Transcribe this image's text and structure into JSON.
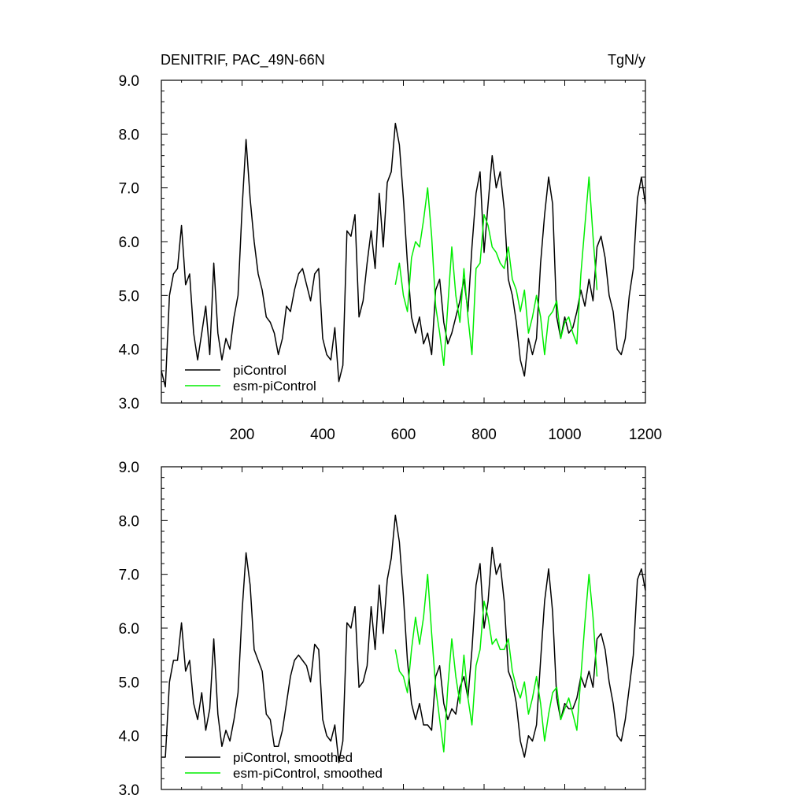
{
  "header": {
    "title": "DENITRIF, PAC_49N-66N",
    "units": "TgN/y"
  },
  "colors": {
    "piControl": "#000000",
    "esm_piControl": "#00ee00",
    "axes": "#000000",
    "background": "#ffffff"
  },
  "chart_data": [
    {
      "type": "line",
      "panel": "top",
      "title": "DENITRIF, PAC_49N-66N",
      "units_label": "TgN/y",
      "xlim": [
        0,
        1200
      ],
      "ylim": [
        3.0,
        9.0
      ],
      "xticks": [
        200,
        400,
        600,
        800,
        1000,
        1200
      ],
      "xtick_labels": [
        "200",
        "400",
        "600",
        "800",
        "1000",
        "1200"
      ],
      "yticks": [
        3.0,
        4.0,
        5.0,
        6.0,
        7.0,
        8.0,
        9.0
      ],
      "ytick_labels": [
        "3.0",
        "4.0",
        "5.0",
        "6.0",
        "7.0",
        "8.0",
        "9.0"
      ],
      "legend_position": "bottom-left",
      "series": [
        {
          "name": "piControl",
          "color": "#000000",
          "x": [
            0,
            10,
            20,
            30,
            40,
            50,
            60,
            70,
            80,
            90,
            100,
            110,
            120,
            130,
            140,
            150,
            160,
            170,
            180,
            190,
            200,
            210,
            220,
            230,
            240,
            250,
            260,
            270,
            280,
            290,
            300,
            310,
            320,
            330,
            340,
            350,
            360,
            370,
            380,
            390,
            400,
            410,
            420,
            430,
            440,
            450,
            460,
            470,
            480,
            490,
            500,
            510,
            520,
            530,
            540,
            550,
            560,
            570,
            580,
            590,
            600,
            610,
            620,
            630,
            640,
            650,
            660,
            670,
            680,
            690,
            700,
            710,
            720,
            730,
            740,
            750,
            760,
            770,
            780,
            790,
            800,
            810,
            820,
            830,
            840,
            850,
            860,
            870,
            880,
            890,
            900,
            910,
            920,
            930,
            940,
            950,
            960,
            970,
            980,
            990,
            1000,
            1010,
            1020,
            1030,
            1040,
            1050,
            1060,
            1070,
            1080,
            1090,
            1100,
            1110,
            1120,
            1130,
            1140,
            1150,
            1160,
            1170,
            1180,
            1190,
            1200
          ],
          "values": [
            3.6,
            3.3,
            5.0,
            5.4,
            5.5,
            6.3,
            5.2,
            5.4,
            4.3,
            3.8,
            4.3,
            4.8,
            3.9,
            5.6,
            4.3,
            3.8,
            4.2,
            4.0,
            4.6,
            5.0,
            6.6,
            7.9,
            6.8,
            6.0,
            5.4,
            5.1,
            4.6,
            4.5,
            4.3,
            3.9,
            4.2,
            4.8,
            4.7,
            5.1,
            5.4,
            5.5,
            5.2,
            4.9,
            5.4,
            5.5,
            4.2,
            3.9,
            3.8,
            4.4,
            3.4,
            3.7,
            6.2,
            6.1,
            6.5,
            4.6,
            4.9,
            5.6,
            6.2,
            5.5,
            6.9,
            5.9,
            7.1,
            7.3,
            8.2,
            7.8,
            6.8,
            5.6,
            4.6,
            4.3,
            4.6,
            4.1,
            4.3,
            3.9,
            5.1,
            5.3,
            4.5,
            4.1,
            4.3,
            4.6,
            4.9,
            5.3,
            4.7,
            5.9,
            6.9,
            7.3,
            5.8,
            6.7,
            7.6,
            7.0,
            7.3,
            6.6,
            5.3,
            5.0,
            4.5,
            3.8,
            3.5,
            4.2,
            3.9,
            4.2,
            5.6,
            6.5,
            7.2,
            6.7,
            4.6,
            4.2,
            4.6,
            4.3,
            4.4,
            4.7,
            5.1,
            4.8,
            5.3,
            4.9,
            5.9,
            6.1,
            5.7,
            5.0,
            4.7,
            4.0,
            3.9,
            4.2,
            5.0,
            5.5,
            6.8,
            7.2,
            6.7
          ]
        },
        {
          "name": "esm-piControl",
          "color": "#00ee00",
          "x": [
            580,
            590,
            600,
            610,
            620,
            630,
            640,
            650,
            660,
            670,
            680,
            690,
            700,
            710,
            720,
            730,
            740,
            750,
            760,
            770,
            780,
            790,
            800,
            810,
            820,
            830,
            840,
            850,
            860,
            870,
            880,
            890,
            900,
            910,
            920,
            930,
            940,
            950,
            960,
            970,
            980,
            990,
            1000,
            1010,
            1020,
            1030,
            1040,
            1050,
            1060,
            1070,
            1080
          ],
          "values": [
            5.2,
            5.6,
            5.0,
            4.7,
            5.7,
            6.0,
            5.9,
            6.4,
            7.0,
            6.1,
            4.8,
            4.3,
            3.7,
            4.8,
            5.9,
            5.0,
            4.5,
            5.5,
            4.6,
            3.9,
            5.5,
            5.6,
            6.5,
            6.3,
            5.9,
            5.8,
            5.6,
            5.5,
            5.9,
            5.3,
            5.1,
            4.7,
            5.1,
            4.3,
            4.6,
            5.0,
            4.6,
            3.9,
            4.6,
            4.7,
            4.9,
            4.2,
            4.5,
            4.6,
            4.3,
            4.1,
            5.4,
            6.3,
            7.2,
            6.1,
            5.1
          ]
        }
      ]
    },
    {
      "type": "line",
      "panel": "bottom",
      "xlim": [
        0,
        1200
      ],
      "ylim": [
        3.0,
        9.0
      ],
      "xticks": [
        200,
        400,
        600,
        800,
        1000,
        1200
      ],
      "yticks": [
        3.0,
        4.0,
        5.0,
        6.0,
        7.0,
        8.0,
        9.0
      ],
      "ytick_labels": [
        "3.0",
        "4.0",
        "5.0",
        "6.0",
        "7.0",
        "8.0",
        "9.0"
      ],
      "legend_position": "bottom-left",
      "series": [
        {
          "name": "piControl, smoothed",
          "color": "#000000",
          "x": [
            0,
            10,
            20,
            30,
            40,
            50,
            60,
            70,
            80,
            90,
            100,
            110,
            120,
            130,
            140,
            150,
            160,
            170,
            180,
            190,
            200,
            210,
            220,
            230,
            240,
            250,
            260,
            270,
            280,
            290,
            300,
            310,
            320,
            330,
            340,
            350,
            360,
            370,
            380,
            390,
            400,
            410,
            420,
            430,
            440,
            450,
            460,
            470,
            480,
            490,
            500,
            510,
            520,
            530,
            540,
            550,
            560,
            570,
            580,
            590,
            600,
            610,
            620,
            630,
            640,
            650,
            660,
            670,
            680,
            690,
            700,
            710,
            720,
            730,
            740,
            750,
            760,
            770,
            780,
            790,
            800,
            810,
            820,
            830,
            840,
            850,
            860,
            870,
            880,
            890,
            900,
            910,
            920,
            930,
            940,
            950,
            960,
            970,
            980,
            990,
            1000,
            1010,
            1020,
            1030,
            1040,
            1050,
            1060,
            1070,
            1080,
            1090,
            1100,
            1110,
            1120,
            1130,
            1140,
            1150,
            1160,
            1170,
            1180,
            1190,
            1200
          ],
          "values": [
            3.6,
            3.6,
            5.0,
            5.4,
            5.4,
            6.1,
            5.2,
            5.4,
            4.6,
            4.3,
            4.8,
            4.1,
            4.5,
            5.8,
            4.4,
            3.8,
            4.1,
            3.9,
            4.3,
            4.8,
            6.3,
            7.4,
            6.8,
            5.6,
            5.4,
            5.2,
            4.4,
            4.3,
            3.8,
            3.8,
            4.1,
            4.6,
            5.1,
            5.4,
            5.5,
            5.4,
            5.3,
            5.0,
            5.7,
            5.6,
            4.3,
            4.0,
            3.9,
            4.2,
            3.5,
            3.9,
            6.1,
            6.0,
            6.4,
            4.9,
            5.0,
            5.3,
            6.4,
            5.6,
            6.8,
            5.9,
            6.9,
            7.3,
            8.1,
            7.6,
            6.6,
            5.4,
            4.6,
            4.3,
            4.6,
            4.2,
            4.2,
            4.1,
            5.1,
            5.3,
            4.6,
            4.3,
            4.5,
            4.4,
            4.9,
            5.1,
            4.7,
            5.6,
            6.8,
            7.2,
            6.0,
            6.5,
            7.5,
            7.0,
            7.2,
            6.5,
            5.2,
            5.0,
            4.6,
            3.9,
            3.6,
            4.0,
            3.9,
            4.2,
            5.4,
            6.5,
            7.1,
            6.3,
            4.7,
            4.3,
            4.6,
            4.5,
            4.5,
            4.7,
            5.1,
            4.9,
            5.2,
            4.9,
            5.8,
            5.9,
            5.6,
            5.0,
            4.6,
            4.0,
            3.9,
            4.3,
            4.9,
            5.5,
            6.9,
            7.1,
            6.7
          ]
        },
        {
          "name": "esm-piControl, smoothed",
          "color": "#00ee00",
          "x": [
            580,
            590,
            600,
            610,
            620,
            630,
            640,
            650,
            660,
            670,
            680,
            690,
            700,
            710,
            720,
            730,
            740,
            750,
            760,
            770,
            780,
            790,
            800,
            810,
            820,
            830,
            840,
            850,
            860,
            870,
            880,
            890,
            900,
            910,
            920,
            930,
            940,
            950,
            960,
            970,
            980,
            990,
            1000,
            1010,
            1020,
            1030,
            1040,
            1050,
            1060,
            1070,
            1080
          ],
          "values": [
            5.6,
            5.2,
            5.1,
            4.8,
            5.6,
            6.2,
            5.7,
            6.2,
            7.0,
            5.9,
            4.9,
            4.3,
            3.7,
            4.9,
            5.8,
            5.1,
            4.6,
            5.5,
            4.7,
            4.2,
            5.3,
            5.6,
            6.5,
            6.2,
            5.7,
            5.8,
            5.6,
            5.6,
            5.8,
            5.2,
            4.9,
            4.7,
            5.0,
            4.4,
            4.7,
            5.1,
            4.6,
            3.9,
            4.4,
            4.8,
            4.9,
            4.3,
            4.5,
            4.7,
            4.4,
            4.1,
            5.1,
            6.1,
            7.0,
            6.2,
            5.1
          ]
        }
      ]
    }
  ]
}
